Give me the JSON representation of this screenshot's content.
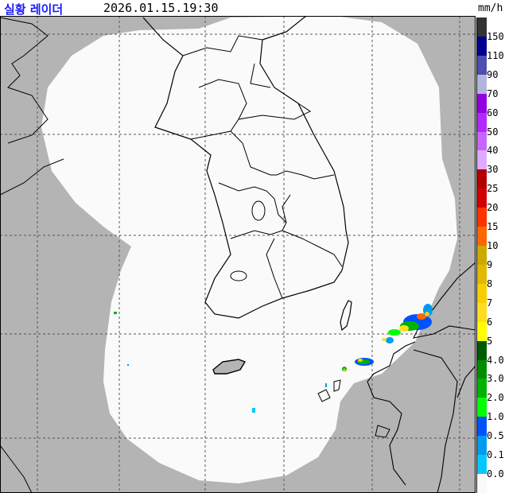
{
  "header": {
    "title": "실황 레이더",
    "timestamp": "2026.01.15.19:30",
    "title_color": "#1a1aff"
  },
  "legend": {
    "unit": "mm/h",
    "labels": [
      "150",
      "110",
      "90",
      "70",
      "60",
      "50",
      "40",
      "30",
      "25",
      "20",
      "15",
      "10",
      "9",
      "8",
      "7",
      "6",
      "5",
      "4.0",
      "3.0",
      "2.0",
      "1.0",
      "0.5",
      "0.1",
      "0.0"
    ],
    "colors": [
      "#333333",
      "#000090",
      "#4c4eb1",
      "#b3b4de",
      "#9300e4",
      "#b329ff",
      "#c965ff",
      "#e0a9ff",
      "#b40000",
      "#d20000",
      "#ff3200",
      "#ff6600",
      "#ccaa00",
      "#e0b900",
      "#f9cd00",
      "#ffdc1f",
      "#ffff00",
      "#005a00",
      "#008c00",
      "#00b300",
      "#00ff00",
      "#0052ff",
      "#009bf0",
      "#00c8ff",
      "#fafafa"
    ]
  },
  "map": {
    "outside_coverage_color": "#b4b4b4",
    "coverage_color": "#fafafa",
    "boundary_color": "#000000"
  }
}
